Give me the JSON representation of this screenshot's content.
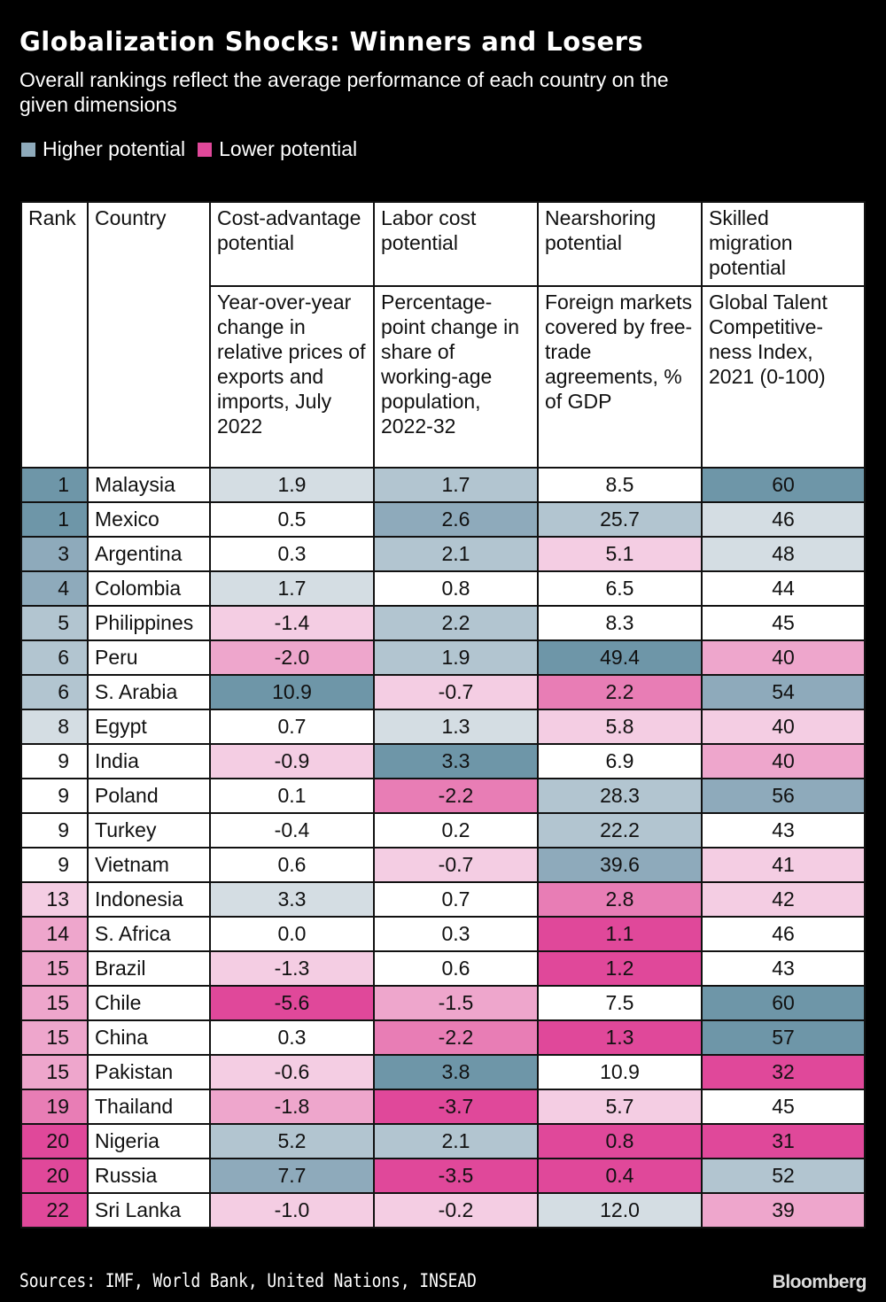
{
  "title": "Globalization Shocks: Winners and Losers",
  "subtitle": "Overall rankings reflect the average performance of each country on the given dimensions",
  "legend": [
    {
      "label": "Higher potential",
      "color": "#8eaabb"
    },
    {
      "label": "Lower potential",
      "color": "#e0489a"
    }
  ],
  "shade_colors": {
    "4": "#6e96a8",
    "3": "#8eaabb",
    "2": "#b2c5d0",
    "1": "#d4dde3",
    "0": "#ffffff",
    "-1": "#f4cde3",
    "-2": "#eea6cc",
    "-3": "#e87db5",
    "-4": "#e0489a"
  },
  "chart_data": {
    "type": "table",
    "columns": [
      {
        "header": "Rank"
      },
      {
        "header": "Country"
      },
      {
        "header": "Cost-advantage potential",
        "subheader": "Year-over-year change in relative prices of exports and imports, July 2022"
      },
      {
        "header": "Labor cost potential",
        "subheader": "Percentage-point change in share of working-age population, 2022-32"
      },
      {
        "header": "Nearshoring potential",
        "subheader": "Foreign markets covered by free-trade agreements, % of GDP"
      },
      {
        "header": "Skilled migration potential",
        "subheader": "Global Talent Competitive-ness Index, 2021 (0-100)"
      }
    ],
    "rows": [
      {
        "rank": "1",
        "country": "Malaysia",
        "values": [
          "1.9",
          "1.7",
          "8.5",
          "60"
        ],
        "shades": [
          4,
          1,
          2,
          0,
          4
        ]
      },
      {
        "rank": "1",
        "country": "Mexico",
        "values": [
          "0.5",
          "2.6",
          "25.7",
          "46"
        ],
        "shades": [
          4,
          0,
          3,
          2,
          1
        ]
      },
      {
        "rank": "3",
        "country": "Argentina",
        "values": [
          "0.3",
          "2.1",
          "5.1",
          "48"
        ],
        "shades": [
          3,
          0,
          2,
          -1,
          1
        ]
      },
      {
        "rank": "4",
        "country": "Colombia",
        "values": [
          "1.7",
          "0.8",
          "6.5",
          "44"
        ],
        "shades": [
          3,
          1,
          0,
          0,
          0
        ]
      },
      {
        "rank": "5",
        "country": "Philippines",
        "values": [
          "-1.4",
          "2.2",
          "8.3",
          "45"
        ],
        "shades": [
          2,
          -1,
          2,
          0,
          0
        ]
      },
      {
        "rank": "6",
        "country": "Peru",
        "values": [
          "-2.0",
          "1.9",
          "49.4",
          "40"
        ],
        "shades": [
          2,
          -2,
          2,
          4,
          -2
        ]
      },
      {
        "rank": "6",
        "country": "S. Arabia",
        "values": [
          "10.9",
          "-0.7",
          "2.2",
          "54"
        ],
        "shades": [
          2,
          4,
          -1,
          -3,
          3
        ]
      },
      {
        "rank": "8",
        "country": "Egypt",
        "values": [
          "0.7",
          "1.3",
          "5.8",
          "40"
        ],
        "shades": [
          1,
          0,
          1,
          -1,
          -1
        ]
      },
      {
        "rank": "9",
        "country": "India",
        "values": [
          "-0.9",
          "3.3",
          "6.9",
          "40"
        ],
        "shades": [
          0,
          -1,
          4,
          0,
          -2
        ]
      },
      {
        "rank": "9",
        "country": "Poland",
        "values": [
          "0.1",
          "-2.2",
          "28.3",
          "56"
        ],
        "shades": [
          0,
          0,
          -3,
          2,
          3
        ]
      },
      {
        "rank": "9",
        "country": "Turkey",
        "values": [
          "-0.4",
          "0.2",
          "22.2",
          "43"
        ],
        "shades": [
          0,
          0,
          0,
          2,
          0
        ]
      },
      {
        "rank": "9",
        "country": "Vietnam",
        "values": [
          "0.6",
          "-0.7",
          "39.6",
          "41"
        ],
        "shades": [
          0,
          0,
          -1,
          3,
          -1
        ]
      },
      {
        "rank": "13",
        "country": "Indonesia",
        "values": [
          "3.3",
          "0.7",
          "2.8",
          "42"
        ],
        "shades": [
          -1,
          1,
          0,
          -3,
          -1
        ]
      },
      {
        "rank": "14",
        "country": "S. Africa",
        "values": [
          "0.0",
          "0.3",
          "1.1",
          "46"
        ],
        "shades": [
          -2,
          0,
          0,
          -4,
          0
        ]
      },
      {
        "rank": "15",
        "country": "Brazil",
        "values": [
          "-1.3",
          "0.6",
          "1.2",
          "43"
        ],
        "shades": [
          -2,
          -1,
          0,
          -4,
          0
        ]
      },
      {
        "rank": "15",
        "country": "Chile",
        "values": [
          "-5.6",
          "-1.5",
          "7.5",
          "60"
        ],
        "shades": [
          -2,
          -4,
          -2,
          0,
          4
        ]
      },
      {
        "rank": "15",
        "country": "China",
        "values": [
          "0.3",
          "-2.2",
          "1.3",
          "57"
        ],
        "shades": [
          -2,
          0,
          -3,
          -4,
          4
        ]
      },
      {
        "rank": "15",
        "country": "Pakistan",
        "values": [
          "-0.6",
          "3.8",
          "10.9",
          "32"
        ],
        "shades": [
          -2,
          -1,
          4,
          0,
          -4
        ]
      },
      {
        "rank": "19",
        "country": "Thailand",
        "values": [
          "-1.8",
          "-3.7",
          "5.7",
          "45"
        ],
        "shades": [
          -3,
          -2,
          -4,
          -1,
          0
        ]
      },
      {
        "rank": "20",
        "country": "Nigeria",
        "values": [
          "5.2",
          "2.1",
          "0.8",
          "31"
        ],
        "shades": [
          -4,
          2,
          2,
          -4,
          -4
        ]
      },
      {
        "rank": "20",
        "country": "Russia",
        "values": [
          "7.7",
          "-3.5",
          "0.4",
          "52"
        ],
        "shades": [
          -4,
          3,
          -4,
          -4,
          2
        ]
      },
      {
        "rank": "22",
        "country": "Sri Lanka",
        "values": [
          "-1.0",
          "-0.2",
          "12.0",
          "39"
        ],
        "shades": [
          -4,
          -1,
          -1,
          1,
          -2
        ]
      }
    ]
  },
  "footer": {
    "sources": "Sources: IMF, World Bank, United Nations, INSEAD",
    "logo": "Bloomberg"
  }
}
